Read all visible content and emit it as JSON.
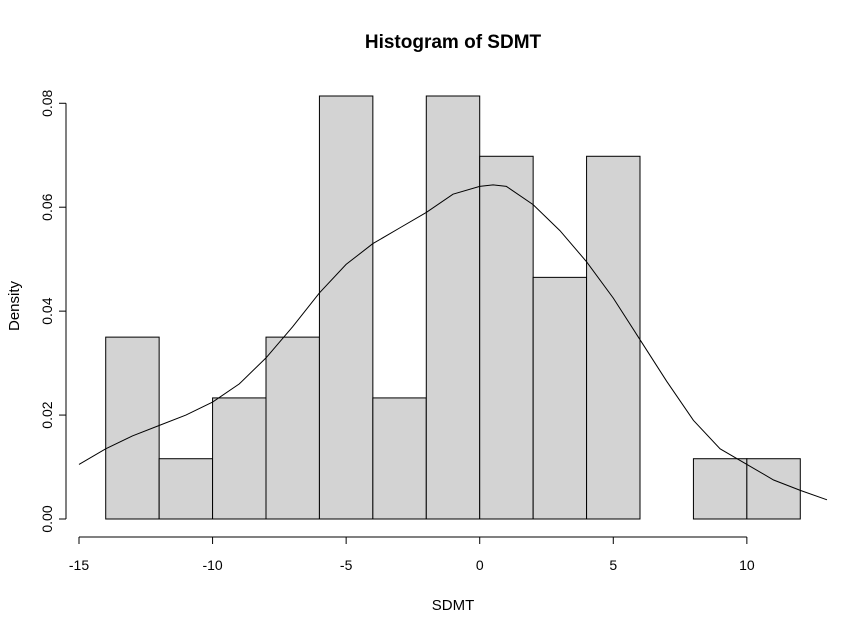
{
  "chart_data": {
    "type": "bar",
    "title": "Histogram of SDMT",
    "xlabel": "SDMT",
    "ylabel": "Density",
    "xlim": [
      -15,
      13
    ],
    "ylim": [
      0,
      0.08
    ],
    "x_ticks": [
      -15,
      -10,
      -5,
      0,
      5,
      10
    ],
    "x_tick_labels": [
      "-15",
      "-10",
      "-5",
      "0",
      "5",
      "10"
    ],
    "y_ticks": [
      0,
      0.02,
      0.04,
      0.06,
      0.08
    ],
    "y_tick_labels": [
      "0.00",
      "0.02",
      "0.04",
      "0.06",
      "0.08"
    ],
    "bins": [
      {
        "x0": -14,
        "x1": -12,
        "density": 0.035
      },
      {
        "x0": -12,
        "x1": -10,
        "density": 0.0116
      },
      {
        "x0": -10,
        "x1": -8,
        "density": 0.0233
      },
      {
        "x0": -8,
        "x1": -6,
        "density": 0.035
      },
      {
        "x0": -6,
        "x1": -4,
        "density": 0.0814
      },
      {
        "x0": -4,
        "x1": -2,
        "density": 0.0233
      },
      {
        "x0": -2,
        "x1": 0,
        "density": 0.0814
      },
      {
        "x0": 0,
        "x1": 2,
        "density": 0.0698
      },
      {
        "x0": 2,
        "x1": 4,
        "density": 0.0465
      },
      {
        "x0": 4,
        "x1": 6,
        "density": 0.0698
      },
      {
        "x0": 6,
        "x1": 8,
        "density": 0
      },
      {
        "x0": 8,
        "x1": 10,
        "density": 0.0116
      },
      {
        "x0": 10,
        "x1": 12,
        "density": 0.0116
      }
    ],
    "density_curve": {
      "x": [
        -15,
        -14,
        -13,
        -12,
        -11,
        -10,
        -9,
        -8,
        -7,
        -6,
        -5,
        -4,
        -3,
        -2,
        -1,
        0,
        0.5,
        1,
        2,
        3,
        4,
        5,
        6,
        7,
        8,
        9,
        10,
        11,
        12,
        13
      ],
      "y": [
        0.0105,
        0.0135,
        0.016,
        0.018,
        0.02,
        0.0225,
        0.026,
        0.031,
        0.037,
        0.0435,
        0.049,
        0.053,
        0.056,
        0.059,
        0.0625,
        0.064,
        0.0643,
        0.064,
        0.0605,
        0.0555,
        0.0495,
        0.0425,
        0.0345,
        0.0265,
        0.019,
        0.0135,
        0.0105,
        0.0075,
        0.0055,
        0.0037
      ]
    }
  }
}
